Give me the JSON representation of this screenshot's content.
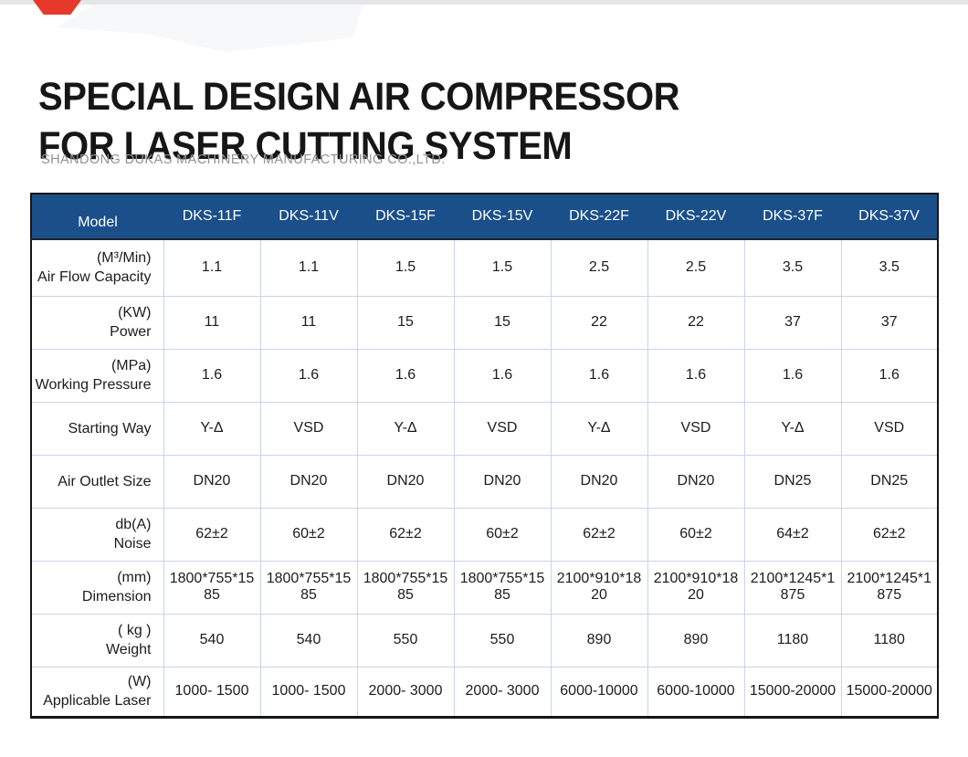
{
  "page": {
    "title_line1": "SPECIAL DESIGN AIR COMPRESSOR",
    "title_line2": "FOR LASER CUTTING SYSTEM",
    "subtitle": "SHANDONG DUKAS MACHINERY MANUFACTURING CO.,LTD."
  },
  "colors": {
    "header_bg": "#1a4f8a",
    "header_text": "#ffffff",
    "grid_line": "#c8d4ec",
    "outer_border": "#151515",
    "accent_red": "#e6392b",
    "top_bar": "#e5e5e8"
  },
  "table": {
    "header": {
      "model_label": "Model",
      "columns": [
        "DKS-11F",
        "DKS-11V",
        "DKS-15F",
        "DKS-15V",
        "DKS-22F",
        "DKS-22V",
        "DKS-37F",
        "DKS-37V"
      ]
    },
    "rows": [
      {
        "unit": "(M³/Min)",
        "label": "Air Flow Capacity",
        "values": [
          "1.1",
          "1.1",
          "1.5",
          "1.5",
          "2.5",
          "2.5",
          "3.5",
          "3.5"
        ]
      },
      {
        "unit": "(KW)",
        "label": "Power",
        "values": [
          "11",
          "11",
          "15",
          "15",
          "22",
          "22",
          "37",
          "37"
        ]
      },
      {
        "unit": "(MPa)",
        "label": "Working Pressure",
        "values": [
          "1.6",
          "1.6",
          "1.6",
          "1.6",
          "1.6",
          "1.6",
          "1.6",
          "1.6"
        ]
      },
      {
        "unit": "",
        "label": "Starting Way",
        "values": [
          "Y-Δ",
          "VSD",
          "Y-Δ",
          "VSD",
          "Y-Δ",
          "VSD",
          "Y-Δ",
          "VSD"
        ]
      },
      {
        "unit": "",
        "label": "Air Outlet Size",
        "values": [
          "DN20",
          "DN20",
          "DN20",
          "DN20",
          "DN20",
          "DN20",
          "DN25",
          "DN25"
        ]
      },
      {
        "unit": "db(A)",
        "label": "Noise",
        "values": [
          "62±2",
          "60±2",
          "62±2",
          "60±2",
          "62±2",
          "60±2",
          "64±2",
          "62±2"
        ]
      },
      {
        "unit": "(mm)",
        "label": "Dimension",
        "values": [
          "1800*755*15\n85",
          "1800*755*15\n85",
          "1800*755*15\n85",
          "1800*755*15\n85",
          "2100*910*18\n20",
          "2100*910*18\n20",
          "2100*1245*1\n875",
          "2100*1245*1\n875"
        ]
      },
      {
        "unit": "( kg )",
        "label": "Weight",
        "values": [
          "540",
          "540",
          "550",
          "550",
          "890",
          "890",
          "1180",
          "1180"
        ]
      },
      {
        "unit": "(W)",
        "label": "Applicable Laser",
        "values": [
          "1000- 1500",
          "1000- 1500",
          "2000- 3000",
          "2000- 3000",
          "6000-10000",
          "6000-10000",
          "15000-20000",
          "15000-20000"
        ]
      }
    ]
  }
}
